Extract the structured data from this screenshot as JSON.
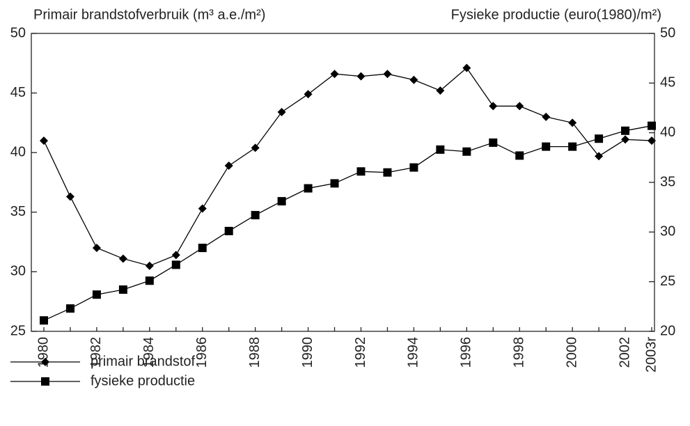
{
  "chart_data": {
    "type": "line",
    "y_label": "Primair brandstofverbruik (m³ a.e./m²)",
    "y2_label": "Fysieke productie (euro(1980)/m²)",
    "categories": [
      "1980",
      null,
      "1982",
      null,
      "1984",
      null,
      "1986",
      null,
      "1988",
      null,
      "1990",
      null,
      "1992",
      null,
      "1994",
      null,
      "1996",
      null,
      "1998",
      null,
      "2000",
      null,
      "2002",
      "2003r"
    ],
    "series": [
      {
        "name": "primair brandstof",
        "color": "#000000",
        "marker": "diamond",
        "values": [
          41.0,
          36.3,
          32.0,
          31.1,
          30.5,
          31.4,
          35.3,
          38.9,
          40.4,
          43.4,
          44.9,
          46.6,
          46.4,
          46.6,
          46.1,
          45.2,
          47.1,
          43.9,
          43.9,
          43.0,
          42.5,
          39.7,
          41.1,
          41.0
        ]
      },
      {
        "name": "fysieke productie",
        "color": "#000000",
        "marker": "square",
        "axis": "y2",
        "values": [
          21.1,
          22.3,
          23.7,
          24.2,
          25.1,
          26.7,
          28.4,
          30.1,
          31.7,
          33.1,
          34.4,
          34.9,
          36.1,
          36.0,
          36.5,
          38.3,
          38.1,
          39.0,
          37.7,
          38.6,
          38.6,
          39.4,
          40.2,
          40.7
        ]
      }
    ],
    "ylim": [
      25,
      50
    ],
    "yticks": [
      25,
      30,
      35,
      40,
      45,
      50
    ],
    "y2lim": [
      20,
      50
    ],
    "y2ticks": [
      20,
      25,
      30,
      35,
      40,
      45,
      50
    ],
    "grid": false,
    "legend": "bottom-left"
  }
}
